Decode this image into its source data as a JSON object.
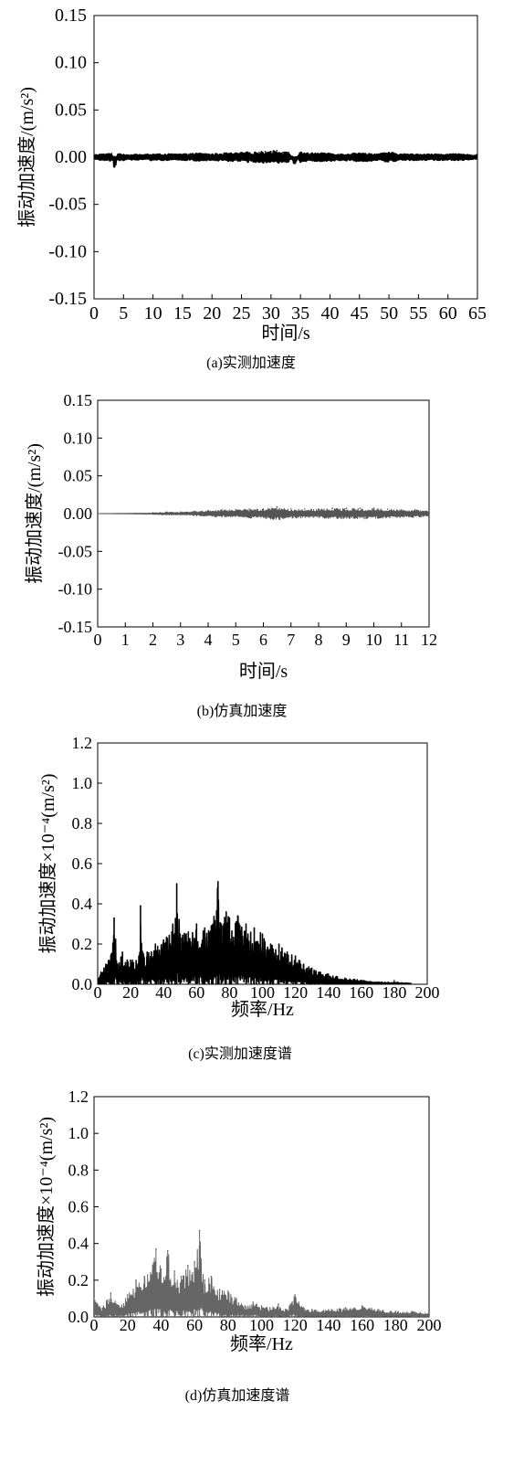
{
  "chart_data": [
    {
      "id": "a",
      "type": "line",
      "caption": "(a)实测加速度",
      "xlabel": "时间/s",
      "ylabel": "振动加速度/(m/s²)",
      "xlim": [
        0,
        65
      ],
      "ylim": [
        -0.15,
        0.15
      ],
      "x_ticks": [
        "0",
        "5",
        "10",
        "15",
        "20",
        "25",
        "30",
        "35",
        "40",
        "45",
        "50",
        "55",
        "60",
        "65"
      ],
      "y_ticks": [
        "0.15",
        "0.10",
        "0.05",
        "0.00",
        "-0.05",
        "-0.10",
        "-0.15"
      ],
      "grid": false,
      "color": "#000000",
      "series": [
        {
          "x": [
            0,
            1,
            2,
            3,
            3.5,
            4,
            5,
            6,
            7,
            8,
            9,
            10,
            12,
            14,
            16,
            18,
            20,
            22,
            24,
            26,
            28,
            29,
            30,
            31,
            32,
            33,
            34,
            35,
            36,
            38,
            40,
            42,
            44,
            46,
            48,
            50,
            52,
            54,
            56,
            58,
            60,
            62,
            64,
            65
          ],
          "y": [
            0.002,
            0.003,
            0.003,
            0.004,
            -0.008,
            0.003,
            0.003,
            0.002,
            0.003,
            0.002,
            0.003,
            0.003,
            0.003,
            0.003,
            0.003,
            0.004,
            0.003,
            0.004,
            0.004,
            0.005,
            0.005,
            0.006,
            0.006,
            0.007,
            0.005,
            0.005,
            -0.005,
            0.005,
            0.004,
            0.004,
            0.004,
            0.003,
            0.004,
            0.004,
            0.003,
            0.005,
            0.003,
            0.003,
            0.003,
            0.003,
            0.003,
            0.003,
            0.002,
            0.002
          ]
        }
      ]
    },
    {
      "id": "b",
      "type": "line",
      "caption": "(b)仿真加速度",
      "xlabel": "时间/s",
      "ylabel": "振动加速度/(m/s²)",
      "xlim": [
        0,
        12
      ],
      "ylim": [
        -0.15,
        0.15
      ],
      "x_ticks": [
        "0",
        "1",
        "2",
        "3",
        "4",
        "5",
        "6",
        "7",
        "8",
        "9",
        "10",
        "11",
        "12"
      ],
      "y_ticks": [
        "0.15",
        "0.10",
        "0.05",
        "0.00",
        "-0.05",
        "-0.10",
        "-0.15"
      ],
      "grid": false,
      "color": "#555555",
      "series": [
        {
          "x": [
            0,
            2,
            2.5,
            3,
            3.5,
            4,
            4.5,
            5,
            5.5,
            6,
            6.5,
            7,
            7.5,
            8,
            8.5,
            9,
            9.5,
            10,
            10.5,
            11,
            11.5,
            12
          ],
          "y": [
            0,
            0.001,
            0.002,
            0.002,
            0.003,
            0.004,
            0.005,
            0.005,
            0.006,
            0.006,
            0.009,
            0.006,
            0.006,
            0.006,
            0.007,
            0.007,
            0.007,
            0.007,
            0.006,
            0.005,
            0.005,
            0.004
          ]
        }
      ]
    },
    {
      "id": "c",
      "type": "line",
      "caption": "(c)实测加速度谱",
      "xlabel": "频率/Hz",
      "ylabel": "振动加速度×10⁻⁴(m/s²)",
      "xlim": [
        0,
        200
      ],
      "ylim": [
        0,
        1.2
      ],
      "x_ticks": [
        "0",
        "20",
        "40",
        "60",
        "80",
        "100",
        "120",
        "140",
        "160",
        "180",
        "200"
      ],
      "y_ticks": [
        "1.2",
        "1.0",
        "0.8",
        "0.6",
        "0.4",
        "0.2",
        "0.0"
      ],
      "grid": false,
      "color": "#000000",
      "series": [
        {
          "x": [
            0,
            2,
            5,
            8,
            10,
            12,
            15,
            18,
            20,
            25,
            26,
            28,
            30,
            35,
            40,
            45,
            48,
            50,
            55,
            60,
            65,
            70,
            73,
            75,
            78,
            80,
            85,
            90,
            95,
            100,
            105,
            110,
            115,
            120,
            125,
            130,
            135,
            140,
            150,
            160,
            170,
            180,
            190
          ],
          "y": [
            0.03,
            0.06,
            0.1,
            0.14,
            0.33,
            0.1,
            0.16,
            0.12,
            0.12,
            0.14,
            0.39,
            0.14,
            0.16,
            0.2,
            0.22,
            0.26,
            0.5,
            0.25,
            0.26,
            0.3,
            0.28,
            0.3,
            0.51,
            0.3,
            0.36,
            0.33,
            0.34,
            0.3,
            0.28,
            0.25,
            0.2,
            0.2,
            0.16,
            0.14,
            0.1,
            0.08,
            0.06,
            0.05,
            0.03,
            0.02,
            0.01,
            0.01,
            0.005
          ]
        }
      ]
    },
    {
      "id": "d",
      "type": "line",
      "caption": "(d)仿真加速度谱",
      "xlabel": "频率/Hz",
      "ylabel": "振动加速度×10⁻⁴(m/s²)",
      "xlim": [
        0,
        200
      ],
      "ylim": [
        0,
        1.2
      ],
      "x_ticks": [
        "0",
        "20",
        "40",
        "60",
        "80",
        "100",
        "120",
        "140",
        "160",
        "180",
        "200"
      ],
      "y_ticks": [
        "1.2",
        "1.0",
        "0.8",
        "0.6",
        "0.4",
        "0.2",
        "0.0"
      ],
      "grid": false,
      "color": "#666666",
      "series": [
        {
          "x": [
            0,
            5,
            10,
            15,
            20,
            25,
            30,
            35,
            37,
            40,
            44,
            48,
            52,
            56,
            60,
            63,
            66,
            70,
            75,
            80,
            85,
            90,
            95,
            100,
            105,
            110,
            115,
            120,
            125,
            130,
            140,
            150,
            160,
            170,
            180,
            190,
            200
          ],
          "y": [
            0.1,
            0.05,
            0.13,
            0.06,
            0.12,
            0.2,
            0.22,
            0.28,
            0.37,
            0.26,
            0.36,
            0.25,
            0.22,
            0.28,
            0.3,
            0.47,
            0.2,
            0.22,
            0.15,
            0.14,
            0.1,
            0.06,
            0.08,
            0.06,
            0.05,
            0.07,
            0.04,
            0.12,
            0.05,
            0.04,
            0.04,
            0.05,
            0.06,
            0.04,
            0.03,
            0.03,
            0.02
          ]
        }
      ]
    }
  ]
}
